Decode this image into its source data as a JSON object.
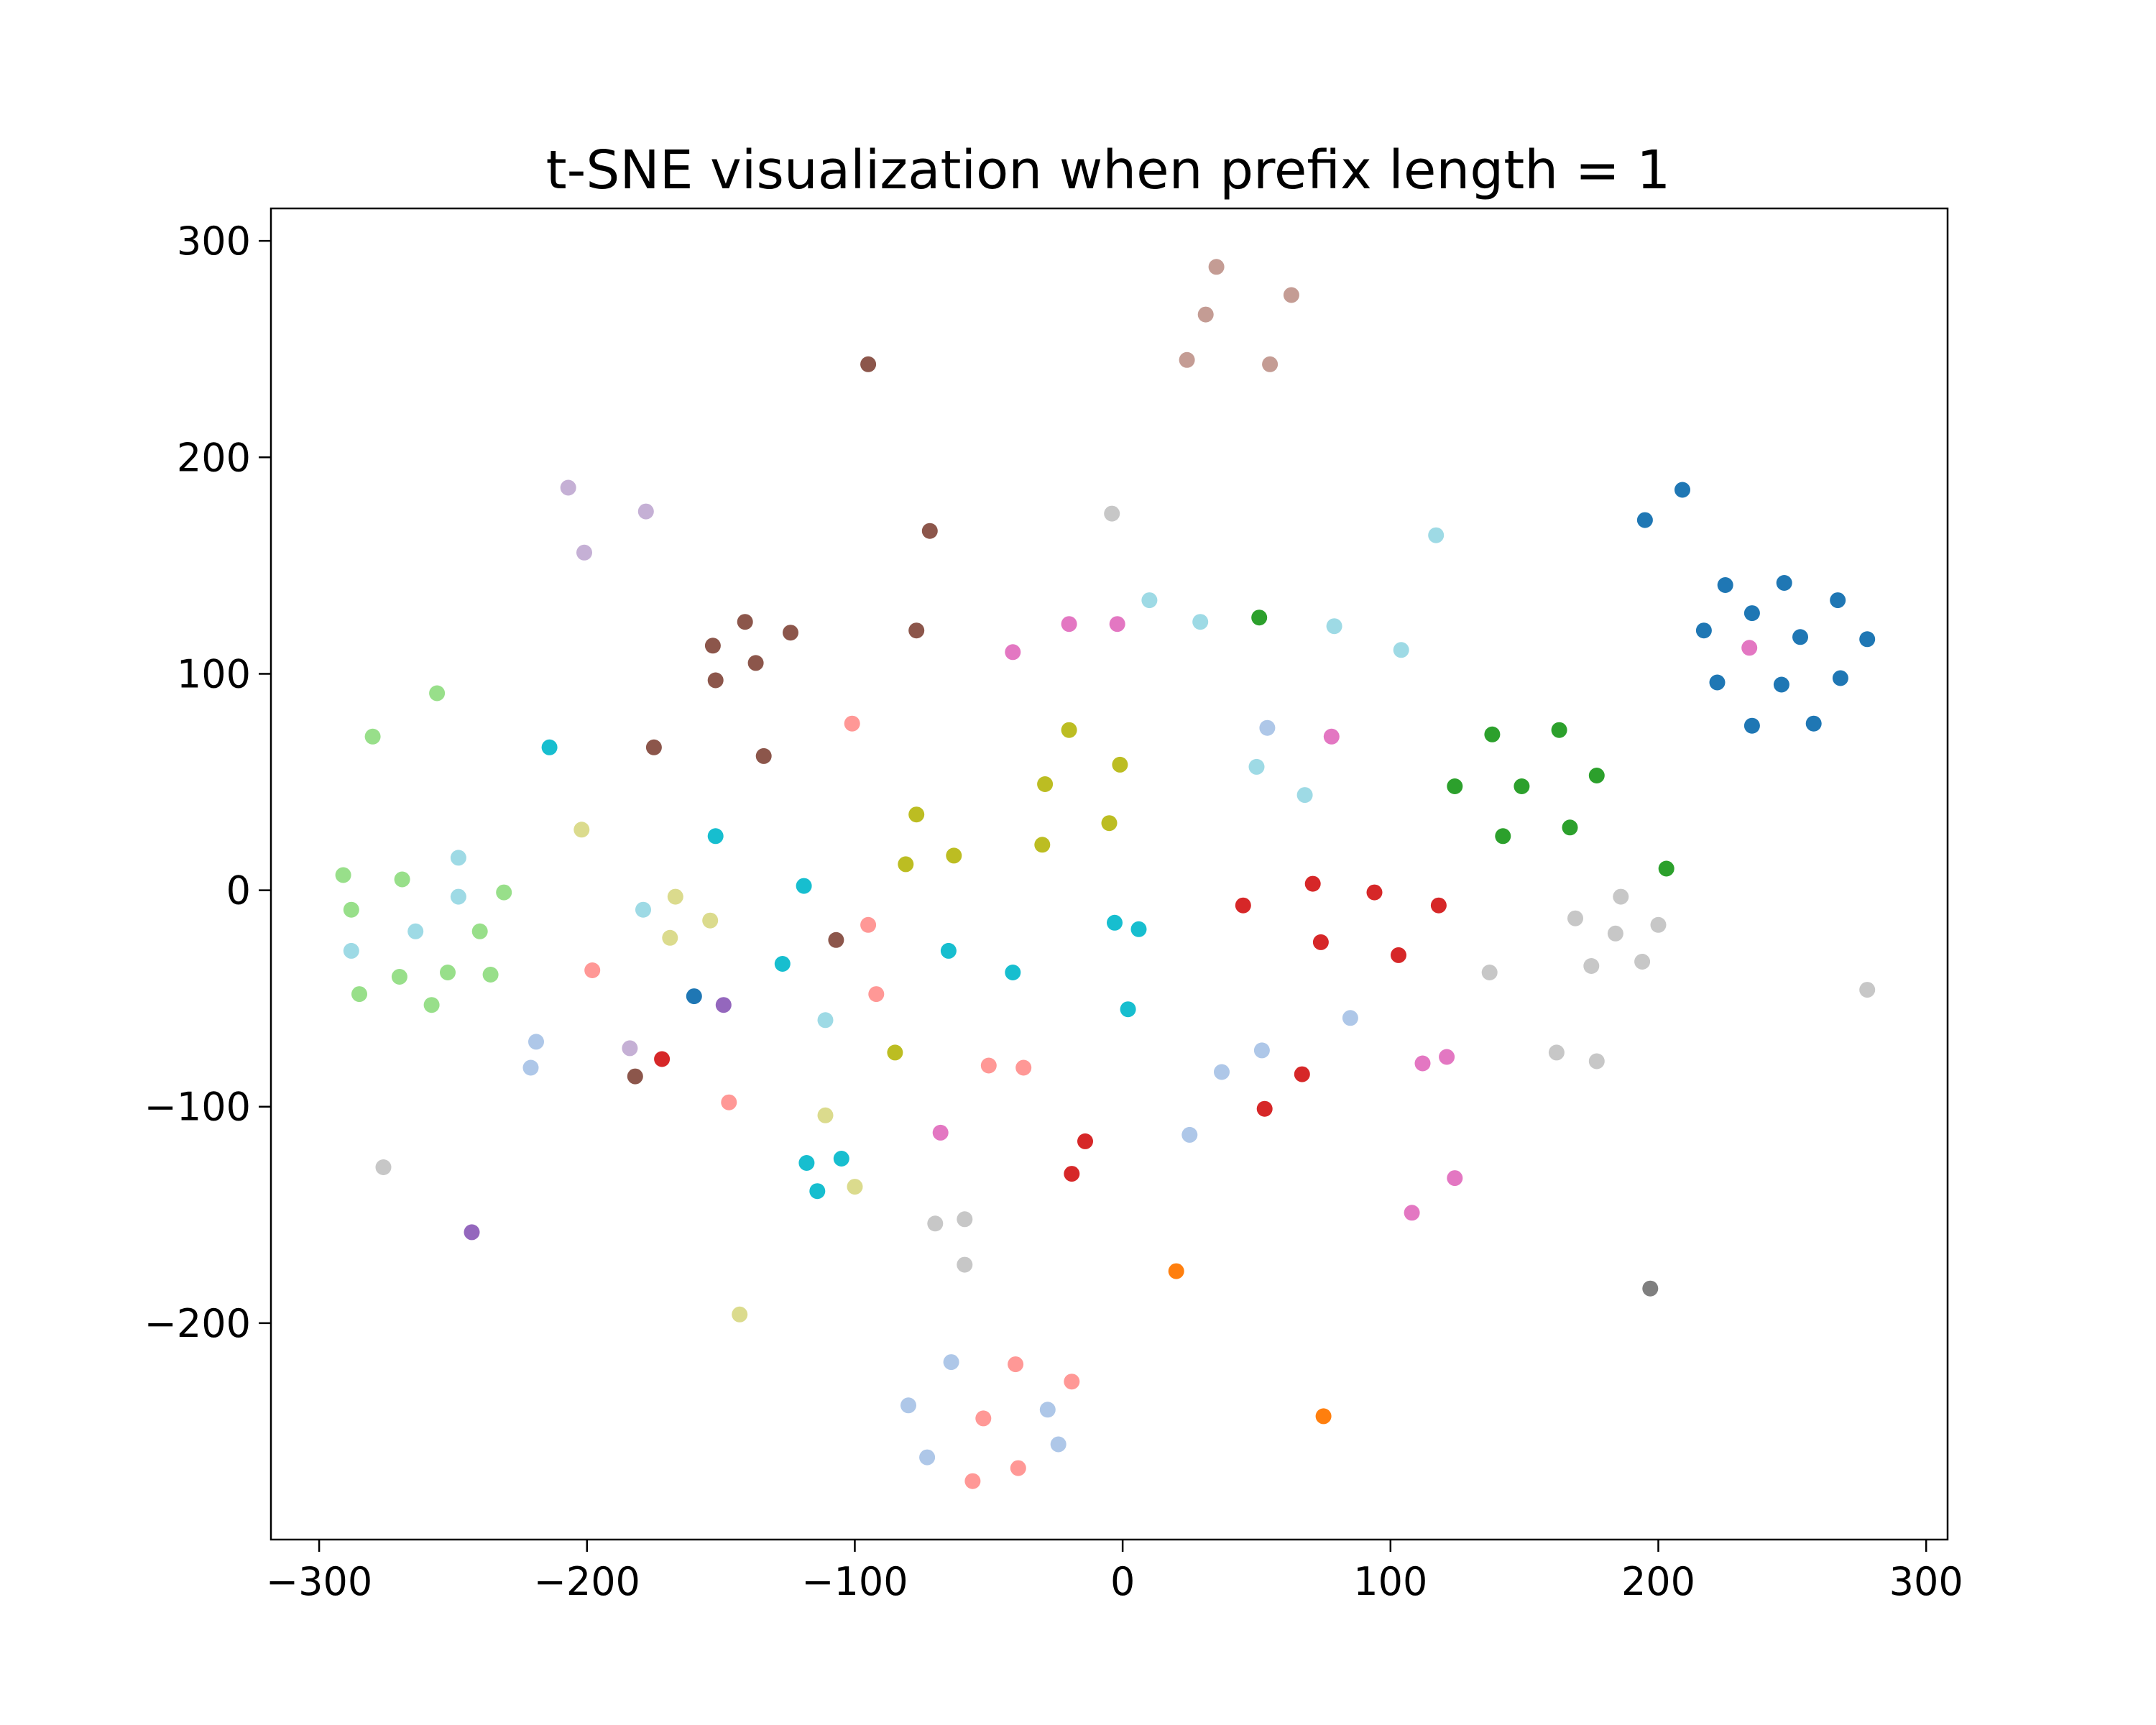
{
  "chart_data": {
    "type": "scatter",
    "title": "t-SNE visualization when prefix length = 1",
    "xlabel": "",
    "ylabel": "",
    "xlim": [
      -318,
      308
    ],
    "ylim": [
      -300,
      315
    ],
    "x_ticks": [
      -300,
      -200,
      -100,
      0,
      100,
      200,
      300
    ],
    "x_tick_labels": [
      "−300",
      "−200",
      "−100",
      "0",
      "100",
      "200",
      "300"
    ],
    "y_ticks": [
      -200,
      -100,
      0,
      100,
      200,
      300
    ],
    "y_tick_labels": [
      "−200",
      "−100",
      "0",
      "100",
      "200",
      "300"
    ],
    "grid": false,
    "legend": "none",
    "points": [
      {
        "x": 195,
        "y": 171,
        "color": "#1f77b4"
      },
      {
        "x": 209,
        "y": 185,
        "color": "#1f77b4"
      },
      {
        "x": 225,
        "y": 141,
        "color": "#1f77b4"
      },
      {
        "x": 235,
        "y": 128,
        "color": "#1f77b4"
      },
      {
        "x": 247,
        "y": 142,
        "color": "#1f77b4"
      },
      {
        "x": 267,
        "y": 134,
        "color": "#1f77b4"
      },
      {
        "x": 217,
        "y": 120,
        "color": "#1f77b4"
      },
      {
        "x": 253,
        "y": 117,
        "color": "#1f77b4"
      },
      {
        "x": 278,
        "y": 116,
        "color": "#1f77b4"
      },
      {
        "x": 222,
        "y": 96,
        "color": "#1f77b4"
      },
      {
        "x": 246,
        "y": 95,
        "color": "#1f77b4"
      },
      {
        "x": 268,
        "y": 98,
        "color": "#1f77b4"
      },
      {
        "x": 235,
        "y": 76,
        "color": "#1f77b4"
      },
      {
        "x": 258,
        "y": 77,
        "color": "#1f77b4"
      },
      {
        "x": -160,
        "y": -49,
        "color": "#1f77b4"
      },
      {
        "x": 20,
        "y": -176,
        "color": "#ff7f0e"
      },
      {
        "x": 75,
        "y": -243,
        "color": "#ff7f0e"
      },
      {
        "x": 51,
        "y": 126,
        "color": "#2ca02c"
      },
      {
        "x": 138,
        "y": 72,
        "color": "#2ca02c"
      },
      {
        "x": 163,
        "y": 74,
        "color": "#2ca02c"
      },
      {
        "x": 124,
        "y": 48,
        "color": "#2ca02c"
      },
      {
        "x": 149,
        "y": 48,
        "color": "#2ca02c"
      },
      {
        "x": 177,
        "y": 53,
        "color": "#2ca02c"
      },
      {
        "x": 142,
        "y": 25,
        "color": "#2ca02c"
      },
      {
        "x": 167,
        "y": 29,
        "color": "#2ca02c"
      },
      {
        "x": 203,
        "y": 10,
        "color": "#2ca02c"
      },
      {
        "x": 71,
        "y": 3,
        "color": "#d62728"
      },
      {
        "x": 94,
        "y": -1,
        "color": "#d62728"
      },
      {
        "x": 45,
        "y": -7,
        "color": "#d62728"
      },
      {
        "x": 118,
        "y": -7,
        "color": "#d62728"
      },
      {
        "x": 74,
        "y": -24,
        "color": "#d62728"
      },
      {
        "x": 103,
        "y": -30,
        "color": "#d62728"
      },
      {
        "x": 67,
        "y": -85,
        "color": "#d62728"
      },
      {
        "x": 53,
        "y": -101,
        "color": "#d62728"
      },
      {
        "x": -14,
        "y": -116,
        "color": "#d62728"
      },
      {
        "x": -19,
        "y": -131,
        "color": "#d62728"
      },
      {
        "x": -172,
        "y": -78,
        "color": "#d62728"
      },
      {
        "x": -149,
        "y": -53,
        "color": "#9467bd"
      },
      {
        "x": -243,
        "y": -158,
        "color": "#9467bd"
      },
      {
        "x": -95,
        "y": 243,
        "color": "#8c564b"
      },
      {
        "x": -72,
        "y": 166,
        "color": "#8c564b"
      },
      {
        "x": -77,
        "y": 120,
        "color": "#8c564b"
      },
      {
        "x": -141,
        "y": 124,
        "color": "#8c564b"
      },
      {
        "x": -124,
        "y": 119,
        "color": "#8c564b"
      },
      {
        "x": -153,
        "y": 113,
        "color": "#8c564b"
      },
      {
        "x": -137,
        "y": 105,
        "color": "#8c564b"
      },
      {
        "x": -152,
        "y": 97,
        "color": "#8c564b"
      },
      {
        "x": -175,
        "y": 66,
        "color": "#8c564b"
      },
      {
        "x": -134,
        "y": 62,
        "color": "#8c564b"
      },
      {
        "x": -107,
        "y": -23,
        "color": "#8c564b"
      },
      {
        "x": -182,
        "y": -86,
        "color": "#8c564b"
      },
      {
        "x": -20,
        "y": 123,
        "color": "#e377c2"
      },
      {
        "x": -2,
        "y": 123,
        "color": "#e377c2"
      },
      {
        "x": -41,
        "y": 110,
        "color": "#e377c2"
      },
      {
        "x": 78,
        "y": 71,
        "color": "#e377c2"
      },
      {
        "x": 234,
        "y": 112,
        "color": "#e377c2"
      },
      {
        "x": 112,
        "y": -80,
        "color": "#e377c2"
      },
      {
        "x": 121,
        "y": -77,
        "color": "#e377c2"
      },
      {
        "x": 124,
        "y": -133,
        "color": "#e377c2"
      },
      {
        "x": 108,
        "y": -149,
        "color": "#e377c2"
      },
      {
        "x": -68,
        "y": -112,
        "color": "#e377c2"
      },
      {
        "x": 197,
        "y": -184,
        "color": "#7f7f7f"
      },
      {
        "x": -20,
        "y": 74,
        "color": "#bcbd22"
      },
      {
        "x": -1,
        "y": 58,
        "color": "#bcbd22"
      },
      {
        "x": -29,
        "y": 49,
        "color": "#bcbd22"
      },
      {
        "x": -77,
        "y": 35,
        "color": "#bcbd22"
      },
      {
        "x": -5,
        "y": 31,
        "color": "#bcbd22"
      },
      {
        "x": -30,
        "y": 21,
        "color": "#bcbd22"
      },
      {
        "x": -63,
        "y": 16,
        "color": "#bcbd22"
      },
      {
        "x": -81,
        "y": 12,
        "color": "#bcbd22"
      },
      {
        "x": -85,
        "y": -75,
        "color": "#bcbd22"
      },
      {
        "x": -214,
        "y": 66,
        "color": "#17becf"
      },
      {
        "x": -152,
        "y": 25,
        "color": "#17becf"
      },
      {
        "x": -119,
        "y": 2,
        "color": "#17becf"
      },
      {
        "x": -3,
        "y": -15,
        "color": "#17becf"
      },
      {
        "x": 6,
        "y": -18,
        "color": "#17becf"
      },
      {
        "x": -65,
        "y": -28,
        "color": "#17becf"
      },
      {
        "x": -127,
        "y": -34,
        "color": "#17becf"
      },
      {
        "x": -41,
        "y": -38,
        "color": "#17becf"
      },
      {
        "x": 2,
        "y": -55,
        "color": "#17becf"
      },
      {
        "x": -118,
        "y": -126,
        "color": "#17becf"
      },
      {
        "x": -105,
        "y": -124,
        "color": "#17becf"
      },
      {
        "x": -114,
        "y": -139,
        "color": "#17becf"
      },
      {
        "x": 35,
        "y": 288,
        "color": "#c49c94"
      },
      {
        "x": 63,
        "y": 275,
        "color": "#c49c94"
      },
      {
        "x": 31,
        "y": 266,
        "color": "#c49c94"
      },
      {
        "x": 24,
        "y": 245,
        "color": "#c49c94"
      },
      {
        "x": 55,
        "y": 243,
        "color": "#c49c94"
      },
      {
        "x": -207,
        "y": 186,
        "color": "#c5b0d5"
      },
      {
        "x": -178,
        "y": 175,
        "color": "#c5b0d5"
      },
      {
        "x": -201,
        "y": 156,
        "color": "#c5b0d5"
      },
      {
        "x": -184,
        "y": -73,
        "color": "#c5b0d5"
      },
      {
        "x": 117,
        "y": 164,
        "color": "#9edae5"
      },
      {
        "x": 10,
        "y": 134,
        "color": "#9edae5"
      },
      {
        "x": 29,
        "y": 124,
        "color": "#9edae5"
      },
      {
        "x": 79,
        "y": 122,
        "color": "#9edae5"
      },
      {
        "x": 104,
        "y": 111,
        "color": "#9edae5"
      },
      {
        "x": 50,
        "y": 57,
        "color": "#9edae5"
      },
      {
        "x": 68,
        "y": 44,
        "color": "#9edae5"
      },
      {
        "x": -248,
        "y": 15,
        "color": "#9edae5"
      },
      {
        "x": -179,
        "y": -9,
        "color": "#9edae5"
      },
      {
        "x": -248,
        "y": -3,
        "color": "#9edae5"
      },
      {
        "x": -264,
        "y": -19,
        "color": "#9edae5"
      },
      {
        "x": -288,
        "y": -28,
        "color": "#9edae5"
      },
      {
        "x": -111,
        "y": -60,
        "color": "#9edae5"
      },
      {
        "x": 54,
        "y": 75,
        "color": "#aec7e8"
      },
      {
        "x": 85,
        "y": -59,
        "color": "#aec7e8"
      },
      {
        "x": 52,
        "y": -74,
        "color": "#aec7e8"
      },
      {
        "x": 37,
        "y": -84,
        "color": "#aec7e8"
      },
      {
        "x": 25,
        "y": -113,
        "color": "#aec7e8"
      },
      {
        "x": -219,
        "y": -70,
        "color": "#aec7e8"
      },
      {
        "x": -221,
        "y": -82,
        "color": "#aec7e8"
      },
      {
        "x": -64,
        "y": -218,
        "color": "#aec7e8"
      },
      {
        "x": -80,
        "y": -238,
        "color": "#aec7e8"
      },
      {
        "x": -73,
        "y": -262,
        "color": "#aec7e8"
      },
      {
        "x": -28,
        "y": -240,
        "color": "#aec7e8"
      },
      {
        "x": -24,
        "y": -256,
        "color": "#aec7e8"
      },
      {
        "x": -256,
        "y": 91,
        "color": "#98df8a"
      },
      {
        "x": -280,
        "y": 71,
        "color": "#98df8a"
      },
      {
        "x": -291,
        "y": 7,
        "color": "#98df8a"
      },
      {
        "x": -269,
        "y": 5,
        "color": "#98df8a"
      },
      {
        "x": -231,
        "y": -1,
        "color": "#98df8a"
      },
      {
        "x": -288,
        "y": -9,
        "color": "#98df8a"
      },
      {
        "x": -240,
        "y": -19,
        "color": "#98df8a"
      },
      {
        "x": -252,
        "y": -38,
        "color": "#98df8a"
      },
      {
        "x": -236,
        "y": -39,
        "color": "#98df8a"
      },
      {
        "x": -270,
        "y": -40,
        "color": "#98df8a"
      },
      {
        "x": -285,
        "y": -48,
        "color": "#98df8a"
      },
      {
        "x": -258,
        "y": -53,
        "color": "#98df8a"
      },
      {
        "x": -101,
        "y": 77,
        "color": "#ff9896"
      },
      {
        "x": -95,
        "y": -16,
        "color": "#ff9896"
      },
      {
        "x": -198,
        "y": -37,
        "color": "#ff9896"
      },
      {
        "x": -92,
        "y": -48,
        "color": "#ff9896"
      },
      {
        "x": -50,
        "y": -81,
        "color": "#ff9896"
      },
      {
        "x": -37,
        "y": -82,
        "color": "#ff9896"
      },
      {
        "x": -147,
        "y": -98,
        "color": "#ff9896"
      },
      {
        "x": -40,
        "y": -219,
        "color": "#ff9896"
      },
      {
        "x": -19,
        "y": -227,
        "color": "#ff9896"
      },
      {
        "x": -52,
        "y": -244,
        "color": "#ff9896"
      },
      {
        "x": -39,
        "y": -267,
        "color": "#ff9896"
      },
      {
        "x": -56,
        "y": -273,
        "color": "#ff9896"
      },
      {
        "x": -202,
        "y": 28,
        "color": "#dbdb8d"
      },
      {
        "x": -167,
        "y": -3,
        "color": "#dbdb8d"
      },
      {
        "x": -154,
        "y": -14,
        "color": "#dbdb8d"
      },
      {
        "x": -169,
        "y": -22,
        "color": "#dbdb8d"
      },
      {
        "x": -111,
        "y": -104,
        "color": "#dbdb8d"
      },
      {
        "x": -100,
        "y": -137,
        "color": "#dbdb8d"
      },
      {
        "x": -143,
        "y": -196,
        "color": "#dbdb8d"
      },
      {
        "x": -4,
        "y": 174,
        "color": "#c7c7c7"
      },
      {
        "x": 186,
        "y": -3,
        "color": "#c7c7c7"
      },
      {
        "x": 169,
        "y": -13,
        "color": "#c7c7c7"
      },
      {
        "x": 200,
        "y": -16,
        "color": "#c7c7c7"
      },
      {
        "x": 184,
        "y": -20,
        "color": "#c7c7c7"
      },
      {
        "x": 175,
        "y": -35,
        "color": "#c7c7c7"
      },
      {
        "x": 194,
        "y": -33,
        "color": "#c7c7c7"
      },
      {
        "x": 137,
        "y": -38,
        "color": "#c7c7c7"
      },
      {
        "x": 278,
        "y": -46,
        "color": "#c7c7c7"
      },
      {
        "x": 162,
        "y": -75,
        "color": "#c7c7c7"
      },
      {
        "x": 177,
        "y": -79,
        "color": "#c7c7c7"
      },
      {
        "x": -276,
        "y": -128,
        "color": "#c7c7c7"
      },
      {
        "x": -70,
        "y": -154,
        "color": "#c7c7c7"
      },
      {
        "x": -59,
        "y": -152,
        "color": "#c7c7c7"
      },
      {
        "x": -59,
        "y": -173,
        "color": "#c7c7c7"
      }
    ]
  }
}
